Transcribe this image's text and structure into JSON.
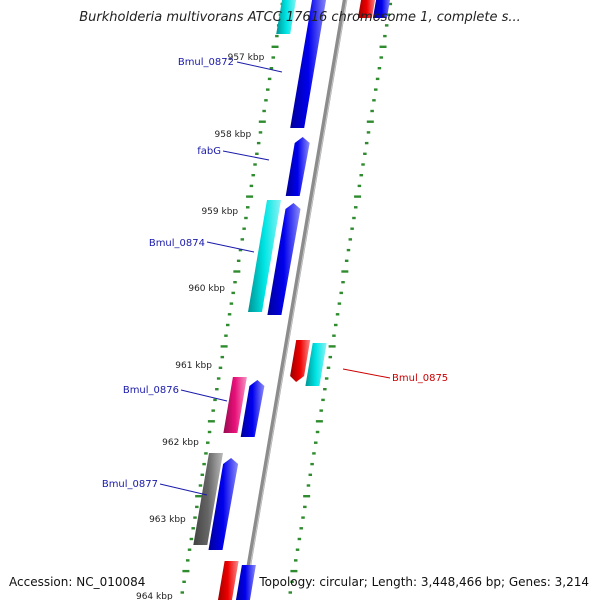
{
  "title": "Burkholderia multivorans ATCC 17616 chromosome 1, complete s...",
  "accession_text": "Accession: NC_010084",
  "summary_text": "Topology: circular; Length: 3,448,466 bp; Genes: 3,214",
  "colors": {
    "backbone": "#8c8c8c",
    "tick": "#2e8b2e",
    "cds": "#0000ee",
    "cds_alt": "#00e5e5",
    "trna": "#ee0000",
    "pink": "#e8107a",
    "gray": "#666666",
    "label_forward": "#1a1aaa",
    "label_reverse": "#cc0000"
  },
  "scale_labels": [
    {
      "pos_kbp": 957,
      "text": "957 kbp"
    },
    {
      "pos_kbp": 958,
      "text": "958 kbp"
    },
    {
      "pos_kbp": 959,
      "text": "959 kbp"
    },
    {
      "pos_kbp": 960,
      "text": "960 kbp"
    },
    {
      "pos_kbp": 961,
      "text": "961 kbp"
    },
    {
      "pos_kbp": 962,
      "text": "962 kbp"
    },
    {
      "pos_kbp": 963,
      "text": "963 kbp"
    },
    {
      "pos_kbp": 964,
      "text": "964 kbp"
    }
  ],
  "gene_labels": [
    {
      "id": "g1",
      "text": "Bmul_0872",
      "strand": "forward"
    },
    {
      "id": "g2",
      "text": "fabG",
      "strand": "forward"
    },
    {
      "id": "g3",
      "text": "Bmul_0874",
      "strand": "forward"
    },
    {
      "id": "g4",
      "text": "Bmul_0875",
      "strand": "reverse"
    },
    {
      "id": "g5",
      "text": "Bmul_0876",
      "strand": "forward"
    },
    {
      "id": "g6",
      "text": "Bmul_0877",
      "strand": "forward"
    }
  ]
}
